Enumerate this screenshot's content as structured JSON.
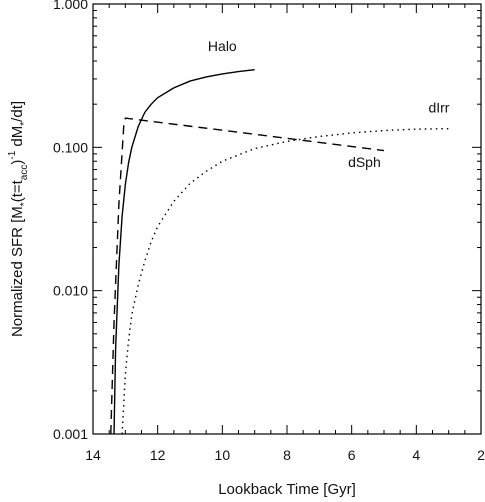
{
  "chart_data": {
    "type": "line",
    "xlabel": "Lookback Time [Gyr]",
    "ylabel_parts": {
      "prefix": "Normalized SFR [M",
      "star_sub": "*",
      "mid1": "(t=t",
      "acc_sub": "acc",
      "mid2": ")",
      "exp": "-1",
      "mid3": " dM",
      "star_sub2": "*",
      "suffix": "/dt]"
    },
    "x_axis": {
      "reversed": true,
      "range": [
        14,
        2
      ],
      "ticks": [
        14,
        12,
        10,
        8,
        6,
        4,
        2
      ],
      "tick_labels": [
        "14",
        "12",
        "10",
        "8",
        "6",
        "4",
        "2"
      ]
    },
    "y_axis": {
      "scale": "log",
      "range": [
        0.001,
        1.0
      ],
      "ticks": [
        0.001,
        0.01,
        0.1,
        1.0
      ],
      "tick_labels": [
        "0.001",
        "0.010",
        "0.100",
        "1.000"
      ]
    },
    "grid": false,
    "series": [
      {
        "name": "Halo",
        "style": "solid",
        "color": "#000000",
        "x": [
          13.35,
          13.3,
          13.2,
          13.1,
          13.0,
          12.9,
          12.8,
          12.6,
          12.4,
          12.2,
          12.0,
          11.5,
          11.0,
          10.5,
          10.0,
          9.5,
          9.0
        ],
        "y": [
          0.001,
          0.004,
          0.015,
          0.033,
          0.055,
          0.078,
          0.1,
          0.14,
          0.175,
          0.2,
          0.222,
          0.26,
          0.29,
          0.31,
          0.325,
          0.338,
          0.348
        ]
      },
      {
        "name": "dSph",
        "style": "dashed",
        "color": "#000000",
        "x": [
          13.45,
          13.35,
          13.2,
          13.05,
          13.0,
          5.0
        ],
        "y": [
          0.001,
          0.006,
          0.04,
          0.14,
          0.16,
          0.095
        ]
      },
      {
        "name": "dIrr",
        "style": "dotted",
        "color": "#000000",
        "x": [
          13.1,
          13.05,
          13.0,
          12.9,
          12.8,
          12.6,
          12.4,
          12.2,
          12.0,
          11.5,
          11.0,
          10.5,
          10.0,
          9.0,
          8.0,
          7.0,
          6.0,
          5.0,
          4.0,
          3.0
        ],
        "y": [
          0.001,
          0.0016,
          0.0026,
          0.0045,
          0.0068,
          0.011,
          0.016,
          0.022,
          0.028,
          0.042,
          0.056,
          0.068,
          0.08,
          0.098,
          0.11,
          0.119,
          0.126,
          0.131,
          0.134,
          0.135
        ]
      }
    ]
  }
}
